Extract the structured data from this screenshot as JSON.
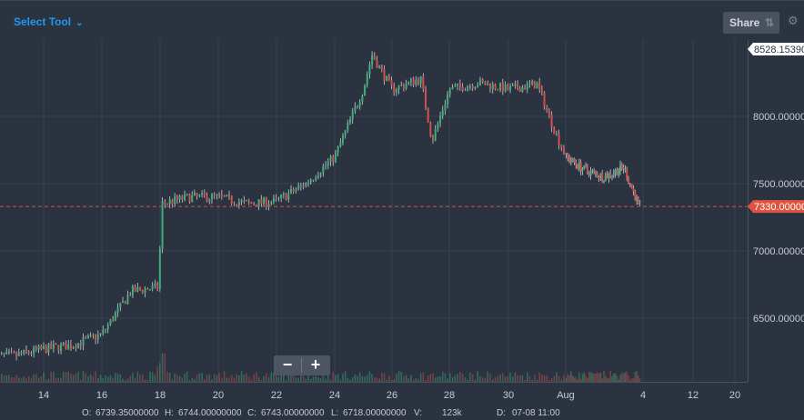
{
  "toolbar": {
    "select_tool_label": "Select Tool",
    "share_label": "Share",
    "share_icon": "share-icon",
    "settings_icon": "gear-icon"
  },
  "zoom": {
    "minus_label": "−",
    "plus_label": "+"
  },
  "info_bar": {
    "open_label": "O:",
    "open_value": "6739.35000000",
    "high_label": "H:",
    "high_value": "6744.00000000",
    "close_label": "C:",
    "close_value": "6743.00000000",
    "low_label": "L:",
    "low_value": "6718.00000000",
    "volume_label": "V:",
    "volume_value": "123k",
    "date_label": "D:",
    "date_value": "07-08 11:00"
  },
  "colors": {
    "background": "#2b3240",
    "grid": "#39414f",
    "up": "#3fae7d",
    "down": "#d0514e",
    "wick": "#c9ced6",
    "current_price_line": "#d0514e",
    "current_price_tag": "#e0543f",
    "accent": "#1e9bf0"
  },
  "chart_data": {
    "type": "candlestick",
    "x_ticks": [
      "14",
      "16",
      "18",
      "20",
      "22",
      "24",
      "26",
      "28",
      "30",
      "Aug",
      "4",
      "12",
      "20"
    ],
    "y_ticks": [
      "6500.00000",
      "7000.00000",
      "7500.00000",
      "8000.00000"
    ],
    "ylim": [
      6100,
      8560
    ],
    "high_label": "8528.15390",
    "current_price": 7330,
    "current_price_label": "7330.00000",
    "grid": true,
    "x": [
      13,
      14,
      15,
      16,
      17,
      17.95,
      18.05,
      19,
      20,
      21,
      22,
      23,
      24,
      25,
      25.3,
      26,
      27,
      27.4,
      28,
      29,
      30,
      31,
      31.6,
      32,
      33,
      34,
      35,
      35.8
    ],
    "close": [
      6220,
      6270,
      6300,
      6380,
      6700,
      6730,
      7350,
      7400,
      7400,
      7350,
      7370,
      7500,
      7700,
      8200,
      8460,
      8200,
      8280,
      7820,
      8200,
      8250,
      8200,
      8240,
      7900,
      7700,
      7600,
      7550,
      7620,
      7330
    ]
  }
}
